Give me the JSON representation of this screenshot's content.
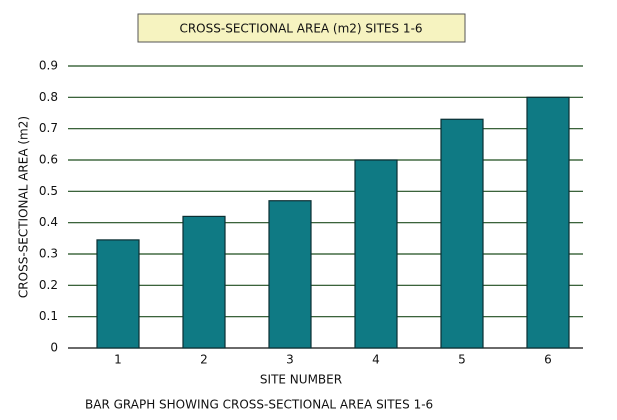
{
  "chart_data": {
    "type": "bar",
    "title": "CROSS-SECTIONAL AREA (m2) SITES 1-6",
    "x_label": "SITE NUMBER",
    "y_label": "CROSS-SECTIONAL AREA (m2)",
    "caption": "BAR GRAPH SHOWING CROSS-SECTIONAL AREA SITES 1-6",
    "categories": [
      "1",
      "2",
      "3",
      "4",
      "5",
      "6"
    ],
    "values": [
      0.345,
      0.42,
      0.47,
      0.6,
      0.73,
      0.8
    ],
    "color": "#0f7a84",
    "ylim": [
      0,
      0.9
    ],
    "yticks": [
      0,
      0.1,
      0.2,
      0.3,
      0.4,
      0.5,
      0.6,
      0.7,
      0.8,
      0.9
    ],
    "grid": true
  }
}
